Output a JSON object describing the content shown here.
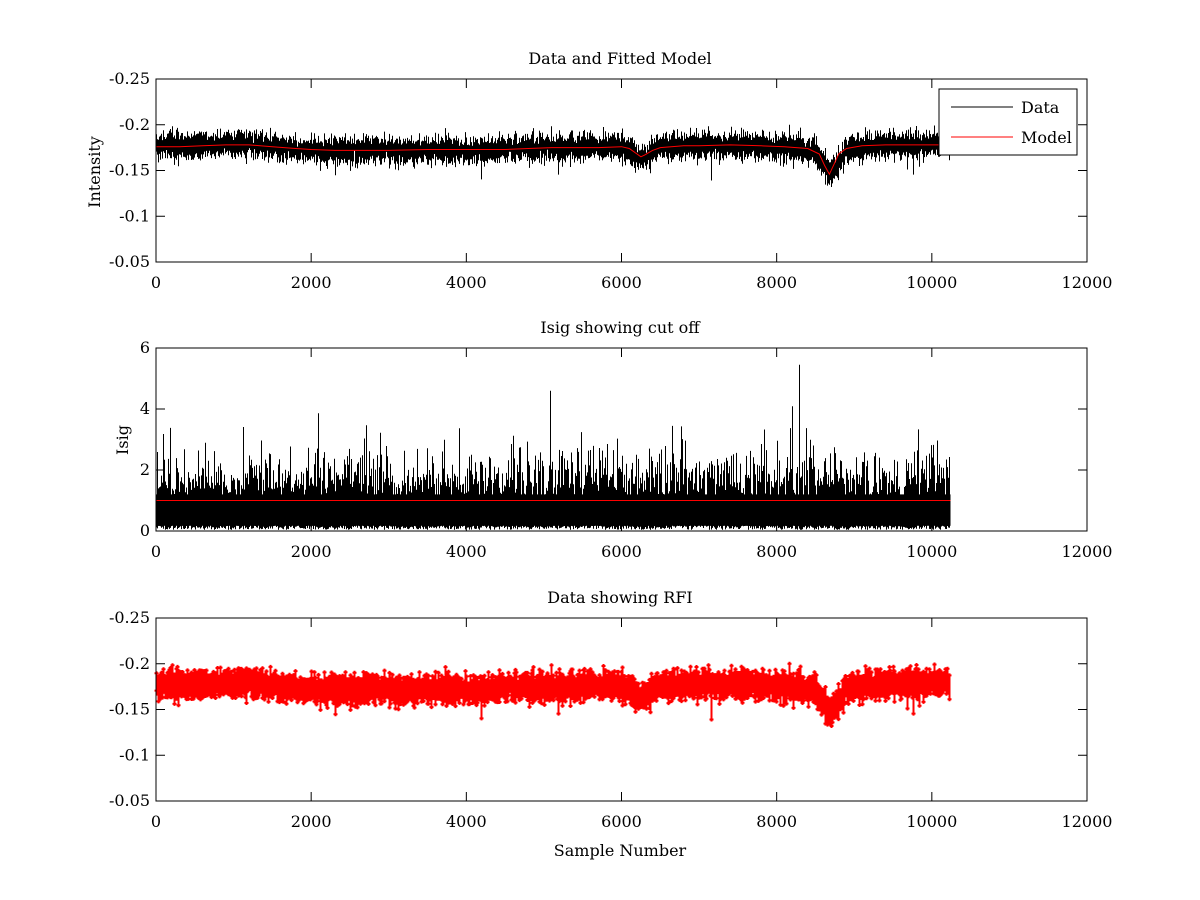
{
  "figure": {
    "background": "#ffffff",
    "colors": {
      "data": "#000000",
      "model": "#ff0000",
      "cutoff": "#ff0000",
      "rfi": "#ff0000"
    }
  },
  "chart_data": [
    {
      "id": "top",
      "type": "line",
      "title": "Data and Fitted Model",
      "xlabel": "",
      "ylabel": "Intensity",
      "xlim": [
        0,
        12000
      ],
      "ylim": [
        -0.25,
        -0.05
      ],
      "ydir": "reverse",
      "xticks": [
        0,
        2000,
        4000,
        6000,
        8000,
        10000,
        12000
      ],
      "xtick_labels": [
        "0",
        "2000",
        "4000",
        "6000",
        "8000",
        "10000",
        "12000"
      ],
      "yticks": [
        -0.05,
        -0.1,
        -0.15,
        -0.2,
        -0.25
      ],
      "ytick_labels": [
        "-0.05",
        "-0.1",
        "-0.15",
        "-0.2",
        "-0.25"
      ],
      "grid": false,
      "legend": {
        "location": "top-right",
        "entries": [
          "Data",
          "Model"
        ]
      },
      "series": [
        {
          "name": "Data",
          "color": "#000000",
          "style": "noisy-line",
          "n_samples": 10240,
          "noise_sd": 0.007,
          "envelope": [
            [
              0,
              -0.176
            ],
            [
              600,
              -0.177
            ],
            [
              1200,
              -0.179
            ],
            [
              1800,
              -0.173
            ],
            [
              2200,
              -0.172
            ],
            [
              3000,
              -0.173
            ],
            [
              4000,
              -0.172
            ],
            [
              5000,
              -0.175
            ],
            [
              6000,
              -0.176
            ],
            [
              6250,
              -0.163
            ],
            [
              6500,
              -0.176
            ],
            [
              7000,
              -0.178
            ],
            [
              8000,
              -0.176
            ],
            [
              8500,
              -0.17
            ],
            [
              8700,
              -0.145
            ],
            [
              8900,
              -0.172
            ],
            [
              9300,
              -0.178
            ],
            [
              10240,
              -0.179
            ]
          ]
        },
        {
          "name": "Model",
          "color": "#ff0000",
          "style": "line",
          "x": [
            0,
            300,
            600,
            900,
            1200,
            1500,
            1800,
            2000,
            2300,
            2600,
            3000,
            3500,
            4000,
            4500,
            4800,
            5100,
            5400,
            5700,
            6000,
            6100,
            6200,
            6250,
            6300,
            6400,
            6500,
            6800,
            7000,
            7400,
            7800,
            8100,
            8400,
            8550,
            8620,
            8680,
            8740,
            8800,
            8900,
            9100,
            9400,
            9700,
            10000,
            10240
          ],
          "y": [
            -0.176,
            -0.176,
            -0.177,
            -0.178,
            -0.178,
            -0.176,
            -0.174,
            -0.173,
            -0.172,
            -0.172,
            -0.172,
            -0.173,
            -0.173,
            -0.173,
            -0.174,
            -0.175,
            -0.175,
            -0.175,
            -0.176,
            -0.174,
            -0.168,
            -0.165,
            -0.167,
            -0.172,
            -0.175,
            -0.177,
            -0.177,
            -0.178,
            -0.177,
            -0.176,
            -0.174,
            -0.168,
            -0.155,
            -0.146,
            -0.157,
            -0.168,
            -0.174,
            -0.177,
            -0.178,
            -0.178,
            -0.178,
            -0.178
          ]
        }
      ]
    },
    {
      "id": "middle",
      "type": "line",
      "title": "Isig showing cut off",
      "xlabel": "",
      "ylabel": "Isig",
      "xlim": [
        0,
        12000
      ],
      "ylim": [
        0,
        6
      ],
      "ydir": "normal",
      "xticks": [
        0,
        2000,
        4000,
        6000,
        8000,
        10000,
        12000
      ],
      "xtick_labels": [
        "0",
        "2000",
        "4000",
        "6000",
        "8000",
        "10000",
        "12000"
      ],
      "yticks": [
        0,
        2,
        4,
        6
      ],
      "ytick_labels": [
        "0",
        "2",
        "4",
        "6"
      ],
      "grid": false,
      "series": [
        {
          "name": "Isig",
          "color": "#000000",
          "style": "noisy-line",
          "n_samples": 10240,
          "typical_max": 1.2,
          "max_value": 5.45,
          "max_at": 8300
        },
        {
          "name": "Cut off",
          "color": "#ff0000",
          "style": "line",
          "x": [
            0,
            10240
          ],
          "y": [
            1,
            1
          ]
        }
      ]
    },
    {
      "id": "bottom",
      "type": "line",
      "title": "Data showing RFI",
      "xlabel": "Sample Number",
      "ylabel": "",
      "xlim": [
        0,
        12000
      ],
      "ylim": [
        -0.25,
        -0.05
      ],
      "ydir": "reverse",
      "xticks": [
        0,
        2000,
        4000,
        6000,
        8000,
        10000,
        12000
      ],
      "xtick_labels": [
        "0",
        "2000",
        "4000",
        "6000",
        "8000",
        "10000",
        "12000"
      ],
      "yticks": [
        -0.05,
        -0.1,
        -0.15,
        -0.2,
        -0.25
      ],
      "ytick_labels": [
        "-0.05",
        "-0.1",
        "-0.15",
        "-0.2",
        "-0.25"
      ],
      "grid": false,
      "series": [
        {
          "name": "Data",
          "color": "#ff0000",
          "style": "noisy-line-markers",
          "n_samples": 10240,
          "noise_sd": 0.007,
          "envelope": [
            [
              0,
              -0.176
            ],
            [
              600,
              -0.177
            ],
            [
              1200,
              -0.179
            ],
            [
              1800,
              -0.173
            ],
            [
              2200,
              -0.172
            ],
            [
              3000,
              -0.173
            ],
            [
              4000,
              -0.172
            ],
            [
              5000,
              -0.175
            ],
            [
              6000,
              -0.176
            ],
            [
              6250,
              -0.163
            ],
            [
              6500,
              -0.176
            ],
            [
              7000,
              -0.178
            ],
            [
              8000,
              -0.176
            ],
            [
              8500,
              -0.17
            ],
            [
              8700,
              -0.145
            ],
            [
              8900,
              -0.172
            ],
            [
              9300,
              -0.178
            ],
            [
              10240,
              -0.179
            ]
          ]
        }
      ]
    }
  ]
}
